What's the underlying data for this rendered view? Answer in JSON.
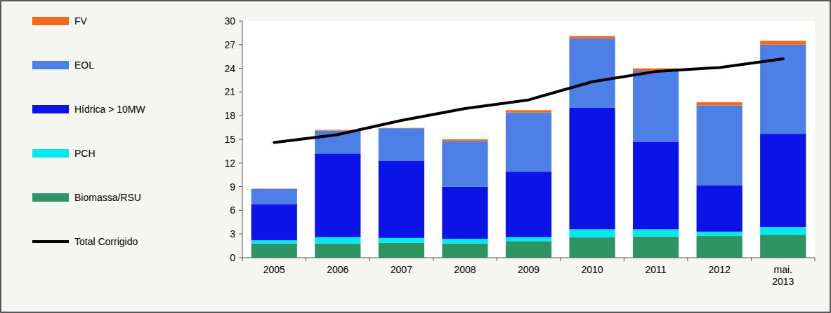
{
  "chart_data": {
    "type": "bar",
    "stacked": true,
    "grid": false,
    "legend": "left",
    "categories": [
      "2005",
      "2006",
      "2007",
      "2008",
      "2009",
      "2010",
      "2011",
      "2012",
      "mai. 2013"
    ],
    "ylim": [
      0,
      30
    ],
    "yticks": [
      0,
      3,
      6,
      9,
      12,
      15,
      18,
      21,
      24,
      27,
      30
    ],
    "series": [
      {
        "name": "Biomassa/RSU",
        "color": "#2f9464",
        "type": "bar",
        "values": [
          1.8,
          1.8,
          1.9,
          1.8,
          2.1,
          2.6,
          2.7,
          2.8,
          2.9
        ]
      },
      {
        "name": "PCH",
        "color": "#00e8f0",
        "type": "bar",
        "values": [
          0.4,
          0.8,
          0.6,
          0.6,
          0.5,
          1.0,
          0.9,
          0.5,
          1.0
        ]
      },
      {
        "name": "Hídrica > 10MW",
        "color": "#0a14e6",
        "type": "bar",
        "values": [
          4.6,
          10.6,
          9.8,
          6.6,
          8.3,
          15.4,
          11.1,
          5.9,
          11.8
        ]
      },
      {
        "name": "EOL",
        "color": "#4d7fe6",
        "type": "bar",
        "values": [
          1.9,
          2.9,
          4.1,
          5.8,
          7.5,
          8.8,
          9.0,
          10.1,
          11.3
        ]
      },
      {
        "name": "FV",
        "color": "#f26a1b",
        "type": "bar",
        "values": [
          0.05,
          0.1,
          0.05,
          0.2,
          0.3,
          0.3,
          0.3,
          0.4,
          0.5
        ]
      },
      {
        "name": "Total Corrigido",
        "color": "#000000",
        "type": "line",
        "values": [
          14.6,
          15.6,
          17.4,
          18.9,
          20.0,
          22.3,
          23.6,
          24.1,
          25.2
        ]
      }
    ]
  }
}
